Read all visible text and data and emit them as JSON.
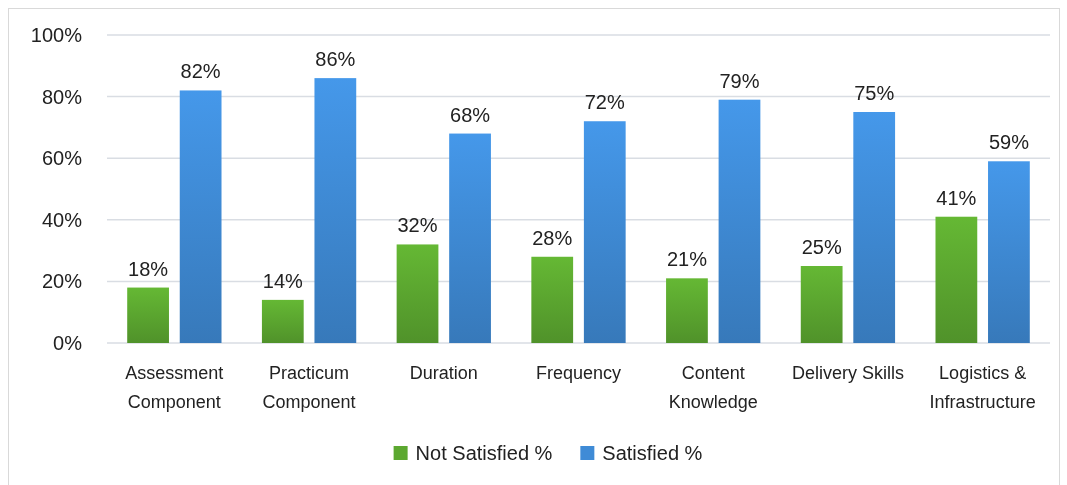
{
  "chart_data": {
    "type": "bar",
    "categories": [
      "Assessment Component",
      "Practicum Component",
      "Duration",
      "Frequency",
      "Content Knowledge",
      "Delivery Skills",
      "Logistics & Infrastructure"
    ],
    "series": [
      {
        "name": "Not Satisfied %",
        "color": "#5ca830",
        "values": [
          18,
          14,
          32,
          28,
          21,
          25,
          41
        ],
        "value_labels": [
          "18%",
          "14%",
          "32%",
          "28%",
          "21%",
          "25%",
          "41%"
        ]
      },
      {
        "name": "Satisfied %",
        "color": "#3f8bd6",
        "values": [
          82,
          86,
          68,
          72,
          79,
          75,
          59
        ],
        "value_labels": [
          "82%",
          "86%",
          "68%",
          "72%",
          "79%",
          "75%",
          "59%"
        ]
      }
    ],
    "ylim": [
      0,
      100
    ],
    "yticks": [
      {
        "value": 0,
        "label": "0%"
      },
      {
        "value": 20,
        "label": "20%"
      },
      {
        "value": 40,
        "label": "40%"
      },
      {
        "value": 60,
        "label": "60%"
      },
      {
        "value": 80,
        "label": "80%"
      },
      {
        "value": 100,
        "label": "100%"
      }
    ],
    "grid": "y",
    "legend": "bottom"
  }
}
